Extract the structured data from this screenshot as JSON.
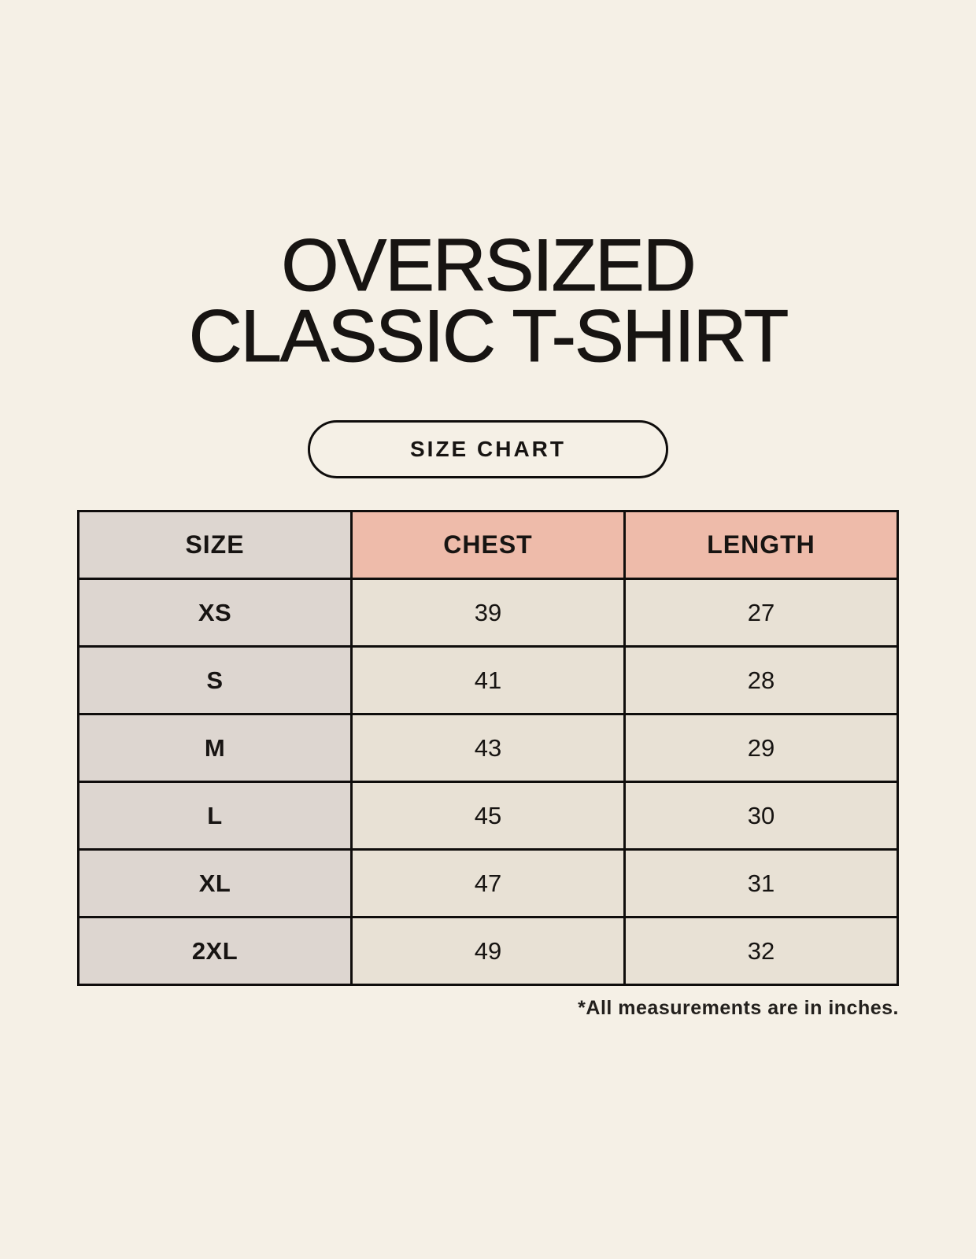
{
  "title": {
    "line1": "OVERSIZED",
    "line2": "CLASSIC T-SHIRT"
  },
  "badge": {
    "label": "SIZE CHART"
  },
  "footnote": "*All measurements are in inches.",
  "chart_data": {
    "type": "table",
    "title": "OVERSIZED CLASSIC T-SHIRT",
    "subtitle": "SIZE CHART",
    "columns": [
      "SIZE",
      "CHEST",
      "LENGTH"
    ],
    "rows": [
      [
        "XS",
        39,
        27
      ],
      [
        "S",
        41,
        28
      ],
      [
        "M",
        43,
        29
      ],
      [
        "L",
        45,
        30
      ],
      [
        "XL",
        47,
        31
      ],
      [
        "2XL",
        49,
        32
      ]
    ],
    "units": "inches",
    "note": "*All measurements are in inches."
  },
  "colors": {
    "bg": "#f5f0e6",
    "accent-pink": "#eebbaa",
    "cell-gray": "#ddd6d0",
    "cell-beige": "#e8e1d5",
    "line": "#0f0d0c",
    "ink": "#171412"
  }
}
